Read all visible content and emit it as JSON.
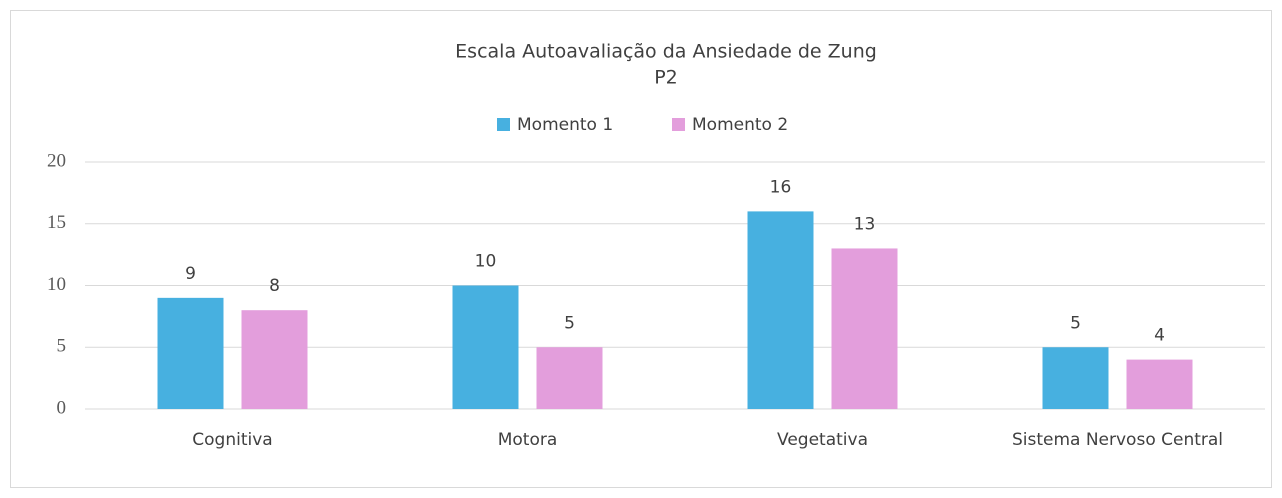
{
  "chart_data": {
    "type": "bar",
    "title": "Escala Autoavaliação da Ansiedade de Zung",
    "subtitle": "P2",
    "categories": [
      "Cognitiva",
      "Motora",
      "Vegetativa",
      "Sistema Nervoso Central"
    ],
    "series": [
      {
        "name": "Momento 1",
        "color": "#47b0e0",
        "values": [
          9,
          10,
          16,
          5
        ]
      },
      {
        "name": "Momento 2",
        "color": "#e39edc",
        "values": [
          8,
          5,
          13,
          4
        ]
      }
    ],
    "ylim": [
      0,
      20
    ],
    "yticks": [
      0,
      5,
      10,
      15,
      20
    ],
    "grid": true,
    "legend": "top"
  }
}
